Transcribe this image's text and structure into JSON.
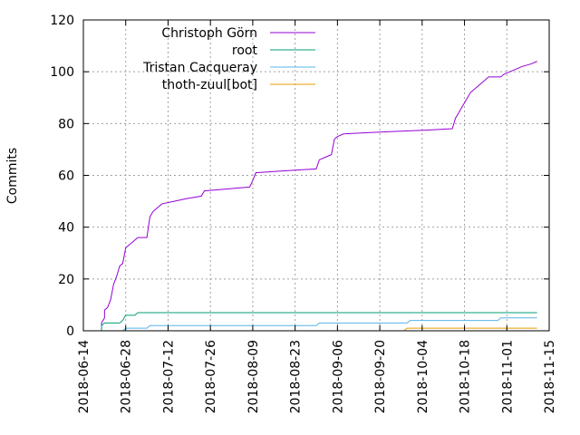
{
  "chart_data": {
    "type": "line",
    "title": "",
    "xlabel": "",
    "ylabel": "Commits",
    "ylim": [
      0,
      120
    ],
    "xlim": [
      "2018-06-14",
      "2018-11-15"
    ],
    "grid": true,
    "legend_position": "top-left",
    "x_ticks": [
      "2018-06-14",
      "2018-06-28",
      "2018-07-12",
      "2018-07-26",
      "2018-08-09",
      "2018-08-23",
      "2018-09-06",
      "2018-09-20",
      "2018-10-04",
      "2018-10-18",
      "2018-11-01",
      "2018-11-15"
    ],
    "y_ticks": [
      "0",
      "20",
      "40",
      "60",
      "80",
      "100",
      "120"
    ],
    "series": [
      {
        "name": "Christoph Görn",
        "color": "#9400d3",
        "points": [
          [
            "2018-06-20",
            0
          ],
          [
            "2018-06-20",
            3
          ],
          [
            "2018-06-21",
            5
          ],
          [
            "2018-06-21",
            8
          ],
          [
            "2018-06-22",
            9
          ],
          [
            "2018-06-23",
            12
          ],
          [
            "2018-06-24",
            18
          ],
          [
            "2018-06-25",
            21
          ],
          [
            "2018-06-26",
            25
          ],
          [
            "2018-06-27",
            26
          ],
          [
            "2018-06-28",
            32
          ],
          [
            "2018-06-29",
            33
          ],
          [
            "2018-06-30",
            34
          ],
          [
            "2018-07-01",
            35
          ],
          [
            "2018-07-02",
            36
          ],
          [
            "2018-07-05",
            36
          ],
          [
            "2018-07-06",
            44
          ],
          [
            "2018-07-07",
            46
          ],
          [
            "2018-07-08",
            47
          ],
          [
            "2018-07-09",
            48
          ],
          [
            "2018-07-10",
            49
          ],
          [
            "2018-07-14",
            50
          ],
          [
            "2018-07-18",
            51
          ],
          [
            "2018-07-23",
            52
          ],
          [
            "2018-07-24",
            54
          ],
          [
            "2018-07-29",
            54.5
          ],
          [
            "2018-08-03",
            55
          ],
          [
            "2018-08-08",
            55.5
          ],
          [
            "2018-08-09",
            58
          ],
          [
            "2018-08-10",
            61
          ],
          [
            "2018-08-16",
            61.5
          ],
          [
            "2018-08-23",
            62
          ],
          [
            "2018-08-30",
            62.5
          ],
          [
            "2018-08-31",
            66
          ],
          [
            "2018-09-02",
            67
          ],
          [
            "2018-09-04",
            68
          ],
          [
            "2018-09-05",
            74
          ],
          [
            "2018-09-06",
            75
          ],
          [
            "2018-09-08",
            76
          ],
          [
            "2018-09-16",
            76.5
          ],
          [
            "2018-09-26",
            77
          ],
          [
            "2018-10-06",
            77.5
          ],
          [
            "2018-10-14",
            78
          ],
          [
            "2018-10-15",
            82
          ],
          [
            "2018-10-16",
            84
          ],
          [
            "2018-10-17",
            86
          ],
          [
            "2018-10-19",
            90
          ],
          [
            "2018-10-20",
            92
          ],
          [
            "2018-10-22",
            94
          ],
          [
            "2018-10-23",
            95
          ],
          [
            "2018-10-25",
            97
          ],
          [
            "2018-10-26",
            98
          ],
          [
            "2018-10-30",
            98
          ],
          [
            "2018-10-31",
            99
          ],
          [
            "2018-11-02",
            100
          ],
          [
            "2018-11-04",
            101
          ],
          [
            "2018-11-06",
            102
          ],
          [
            "2018-11-09",
            103
          ],
          [
            "2018-11-11",
            104
          ]
        ]
      },
      {
        "name": "root",
        "color": "#009e73",
        "points": [
          [
            "2018-06-20",
            0
          ],
          [
            "2018-06-20",
            2
          ],
          [
            "2018-06-21",
            3
          ],
          [
            "2018-06-26",
            3
          ],
          [
            "2018-06-27",
            4
          ],
          [
            "2018-06-28",
            6
          ],
          [
            "2018-07-01",
            6
          ],
          [
            "2018-07-02",
            7
          ],
          [
            "2018-11-11",
            7
          ]
        ]
      },
      {
        "name": "Tristan Cacqueray",
        "color": "#56b4e9",
        "points": [
          [
            "2018-06-27",
            0
          ],
          [
            "2018-06-28",
            1
          ],
          [
            "2018-07-05",
            1
          ],
          [
            "2018-07-06",
            2
          ],
          [
            "2018-08-30",
            2
          ],
          [
            "2018-08-31",
            3
          ],
          [
            "2018-09-29",
            3
          ],
          [
            "2018-09-30",
            4
          ],
          [
            "2018-10-29",
            4
          ],
          [
            "2018-10-30",
            5
          ],
          [
            "2018-11-11",
            5
          ]
        ]
      },
      {
        "name": "thoth-zuul[bot]",
        "color": "#e69f00",
        "points": [
          [
            "2018-09-28",
            0
          ],
          [
            "2018-09-29",
            1
          ],
          [
            "2018-11-11",
            1
          ]
        ]
      }
    ]
  }
}
